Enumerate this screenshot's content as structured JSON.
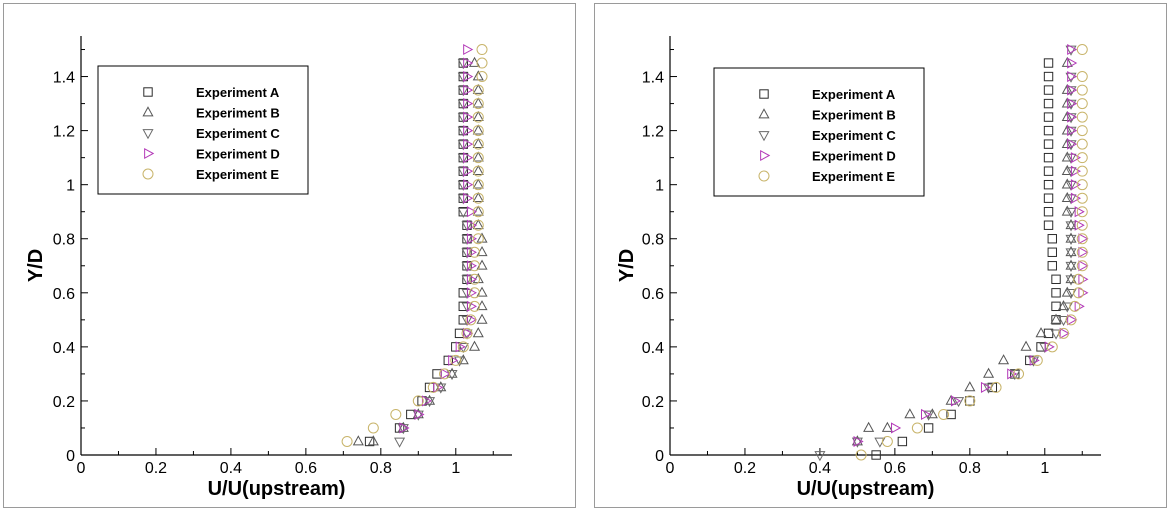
{
  "colors": {
    "experiment_a": "#2b2b2b",
    "experiment_b": "#555555",
    "experiment_c": "#6a6a6a",
    "experiment_d": "#b33ab8",
    "experiment_e": "#c8b46a"
  },
  "chart_data": [
    {
      "type": "scatter",
      "title": "",
      "xlabel": "U/U(upstream)",
      "ylabel": "Y/D",
      "xlim": [
        0,
        1.15
      ],
      "ylim": [
        0,
        1.55
      ],
      "grid": false,
      "legend_position": "top-left",
      "x_ticks": [
        "0",
        "0.2",
        "0.4",
        "0.6",
        "0.8",
        "1"
      ],
      "y_ticks": [
        "0",
        "0.2",
        "0.4",
        "0.6",
        "0.8",
        "1",
        "1.2",
        "1.4"
      ],
      "series": [
        {
          "name": "Experiment A",
          "marker": "square",
          "x": [
            0.77,
            0.85,
            0.88,
            0.91,
            0.93,
            0.95,
            0.98,
            1.0,
            1.01,
            1.02,
            1.02,
            1.02,
            1.03,
            1.03,
            1.03,
            1.03,
            1.03,
            1.02,
            1.02,
            1.02,
            1.02,
            1.02,
            1.02,
            1.02,
            1.02,
            1.02,
            1.02,
            1.02,
            1.02
          ],
          "y": [
            0.05,
            0.1,
            0.15,
            0.2,
            0.25,
            0.3,
            0.35,
            0.4,
            0.45,
            0.5,
            0.55,
            0.6,
            0.65,
            0.7,
            0.75,
            0.8,
            0.85,
            0.9,
            0.95,
            1.0,
            1.05,
            1.1,
            1.15,
            1.2,
            1.25,
            1.3,
            1.35,
            1.4,
            1.45
          ]
        },
        {
          "name": "Experiment B",
          "marker": "triangle-up",
          "x": [
            0.74,
            0.78,
            0.86,
            0.9,
            0.93,
            0.96,
            0.99,
            1.02,
            1.05,
            1.06,
            1.07,
            1.07,
            1.07,
            1.06,
            1.07,
            1.07,
            1.07,
            1.06,
            1.06,
            1.06,
            1.06,
            1.06,
            1.06,
            1.06,
            1.06,
            1.06,
            1.06,
            1.06,
            1.06,
            1.05
          ],
          "y": [
            0.05,
            0.05,
            0.1,
            0.15,
            0.2,
            0.25,
            0.3,
            0.35,
            0.4,
            0.45,
            0.5,
            0.55,
            0.6,
            0.65,
            0.7,
            0.75,
            0.8,
            0.85,
            0.9,
            0.95,
            1.0,
            1.05,
            1.1,
            1.15,
            1.2,
            1.25,
            1.3,
            1.35,
            1.4,
            1.45
          ]
        },
        {
          "name": "Experiment C",
          "marker": "triangle-down",
          "x": [
            0.85,
            0.86,
            0.9,
            0.93,
            0.96,
            0.99,
            1.01,
            1.02,
            1.03,
            1.03,
            1.03,
            1.03,
            1.03,
            1.03,
            1.03,
            1.03,
            1.03,
            1.02,
            1.02,
            1.02,
            1.02,
            1.02,
            1.02,
            1.02,
            1.02,
            1.02,
            1.02,
            1.02,
            1.02
          ],
          "y": [
            0.05,
            0.1,
            0.15,
            0.2,
            0.25,
            0.3,
            0.35,
            0.4,
            0.45,
            0.5,
            0.55,
            0.6,
            0.65,
            0.7,
            0.75,
            0.8,
            0.85,
            0.9,
            0.95,
            1.0,
            1.05,
            1.1,
            1.15,
            1.2,
            1.25,
            1.3,
            1.35,
            1.4,
            1.45
          ]
        },
        {
          "name": "Experiment D",
          "marker": "triangle-right",
          "x": [
            0.86,
            0.9,
            0.92,
            0.95,
            0.97,
            0.99,
            1.01,
            1.03,
            1.04,
            1.04,
            1.04,
            1.04,
            1.04,
            1.04,
            1.04,
            1.04,
            1.04,
            1.03,
            1.03,
            1.03,
            1.03,
            1.03,
            1.03,
            1.03,
            1.03,
            1.03,
            1.03,
            1.03,
            1.03
          ],
          "y": [
            0.1,
            0.15,
            0.2,
            0.25,
            0.3,
            0.35,
            0.4,
            0.45,
            0.5,
            0.55,
            0.6,
            0.65,
            0.7,
            0.75,
            0.8,
            0.85,
            0.9,
            0.95,
            1.0,
            1.05,
            1.1,
            1.15,
            1.2,
            1.25,
            1.3,
            1.35,
            1.4,
            1.45,
            1.5
          ]
        },
        {
          "name": "Experiment E",
          "marker": "circle",
          "x": [
            0.71,
            0.78,
            0.84,
            0.9,
            0.94,
            0.97,
            1.0,
            1.02,
            1.03,
            1.04,
            1.05,
            1.05,
            1.05,
            1.05,
            1.05,
            1.06,
            1.06,
            1.06,
            1.06,
            1.06,
            1.06,
            1.06,
            1.06,
            1.06,
            1.06,
            1.06,
            1.06,
            1.07,
            1.07,
            1.07
          ],
          "y": [
            0.05,
            0.1,
            0.15,
            0.2,
            0.25,
            0.3,
            0.35,
            0.4,
            0.45,
            0.5,
            0.55,
            0.6,
            0.65,
            0.7,
            0.75,
            0.8,
            0.85,
            0.9,
            0.95,
            1.0,
            1.05,
            1.1,
            1.15,
            1.2,
            1.25,
            1.3,
            1.35,
            1.4,
            1.45,
            1.5
          ]
        }
      ]
    },
    {
      "type": "scatter",
      "title": "",
      "xlabel": "U/U(upstream)",
      "ylabel": "Y/D",
      "xlim": [
        0,
        1.15
      ],
      "ylim": [
        0,
        1.55
      ],
      "grid": false,
      "legend_position": "top-left",
      "x_ticks": [
        "0",
        "0.2",
        "0.4",
        "0.6",
        "0.8",
        "1"
      ],
      "y_ticks": [
        "0",
        "0.2",
        "0.4",
        "0.6",
        "0.8",
        "1",
        "1.2",
        "1.4"
      ],
      "series": [
        {
          "name": "Experiment A",
          "marker": "square",
          "x": [
            0.55,
            0.62,
            0.69,
            0.75,
            0.8,
            0.86,
            0.92,
            0.96,
            0.99,
            1.01,
            1.03,
            1.03,
            1.03,
            1.03,
            1.02,
            1.02,
            1.02,
            1.01,
            1.01,
            1.01,
            1.01,
            1.01,
            1.01,
            1.01,
            1.01,
            1.01,
            1.01,
            1.01,
            1.01,
            1.01
          ],
          "y": [
            0.0,
            0.05,
            0.1,
            0.15,
            0.2,
            0.25,
            0.3,
            0.35,
            0.4,
            0.45,
            0.5,
            0.55,
            0.6,
            0.65,
            0.7,
            0.75,
            0.8,
            0.85,
            0.9,
            0.95,
            1.0,
            1.05,
            1.1,
            1.15,
            1.2,
            1.25,
            1.3,
            1.35,
            1.4,
            1.45
          ]
        },
        {
          "name": "Experiment B",
          "marker": "triangle-up",
          "x": [
            0.5,
            0.53,
            0.58,
            0.64,
            0.7,
            0.75,
            0.8,
            0.85,
            0.89,
            0.95,
            0.99,
            1.03,
            1.05,
            1.06,
            1.07,
            1.07,
            1.07,
            1.07,
            1.07,
            1.06,
            1.06,
            1.06,
            1.06,
            1.06,
            1.06,
            1.06,
            1.06,
            1.06,
            1.06,
            1.06
          ],
          "y": [
            0.05,
            0.1,
            0.1,
            0.15,
            0.15,
            0.2,
            0.25,
            0.3,
            0.35,
            0.4,
            0.45,
            0.5,
            0.55,
            0.6,
            0.65,
            0.7,
            0.75,
            0.8,
            0.85,
            0.9,
            0.95,
            1.0,
            1.05,
            1.1,
            1.15,
            1.2,
            1.25,
            1.3,
            1.35,
            1.45
          ]
        },
        {
          "name": "Experiment C",
          "marker": "triangle-down",
          "x": [
            0.4,
            0.5,
            0.56,
            0.69,
            0.77,
            0.85,
            0.92,
            0.97,
            1.0,
            1.03,
            1.05,
            1.06,
            1.07,
            1.07,
            1.07,
            1.07,
            1.07,
            1.07,
            1.07,
            1.07,
            1.07,
            1.07,
            1.07,
            1.07,
            1.07,
            1.07,
            1.07,
            1.07,
            1.07,
            1.07
          ],
          "y": [
            0.0,
            0.05,
            0.05,
            0.15,
            0.2,
            0.25,
            0.3,
            0.35,
            0.4,
            0.45,
            0.5,
            0.55,
            0.6,
            0.65,
            0.7,
            0.75,
            0.8,
            0.85,
            0.9,
            0.95,
            1.0,
            1.05,
            1.1,
            1.15,
            1.2,
            1.25,
            1.3,
            1.35,
            1.4,
            1.5
          ]
        },
        {
          "name": "Experiment D",
          "marker": "triangle-right",
          "x": [
            0.5,
            0.6,
            0.68,
            0.76,
            0.84,
            0.91,
            0.97,
            1.01,
            1.05,
            1.07,
            1.09,
            1.1,
            1.1,
            1.1,
            1.1,
            1.1,
            1.09,
            1.09,
            1.08,
            1.08,
            1.08,
            1.08,
            1.07,
            1.07,
            1.07,
            1.07,
            1.07,
            1.07,
            1.07,
            1.07
          ],
          "y": [
            0.05,
            0.1,
            0.15,
            0.2,
            0.25,
            0.3,
            0.35,
            0.4,
            0.45,
            0.5,
            0.55,
            0.6,
            0.65,
            0.7,
            0.75,
            0.8,
            0.85,
            0.9,
            0.95,
            1.0,
            1.05,
            1.1,
            1.15,
            1.2,
            1.25,
            1.3,
            1.35,
            1.4,
            1.45,
            1.5
          ]
        },
        {
          "name": "Experiment E",
          "marker": "circle",
          "x": [
            0.51,
            0.58,
            0.66,
            0.73,
            0.8,
            0.87,
            0.93,
            0.98,
            1.02,
            1.05,
            1.07,
            1.08,
            1.09,
            1.09,
            1.1,
            1.1,
            1.1,
            1.1,
            1.1,
            1.1,
            1.1,
            1.1,
            1.1,
            1.1,
            1.1,
            1.1,
            1.1,
            1.1,
            1.1,
            1.1
          ],
          "y": [
            0.0,
            0.05,
            0.1,
            0.15,
            0.2,
            0.25,
            0.3,
            0.35,
            0.4,
            0.45,
            0.5,
            0.55,
            0.6,
            0.65,
            0.7,
            0.75,
            0.8,
            0.85,
            0.9,
            0.95,
            1.0,
            1.05,
            1.1,
            1.15,
            1.2,
            1.25,
            1.3,
            1.35,
            1.4,
            1.5
          ]
        }
      ]
    }
  ]
}
